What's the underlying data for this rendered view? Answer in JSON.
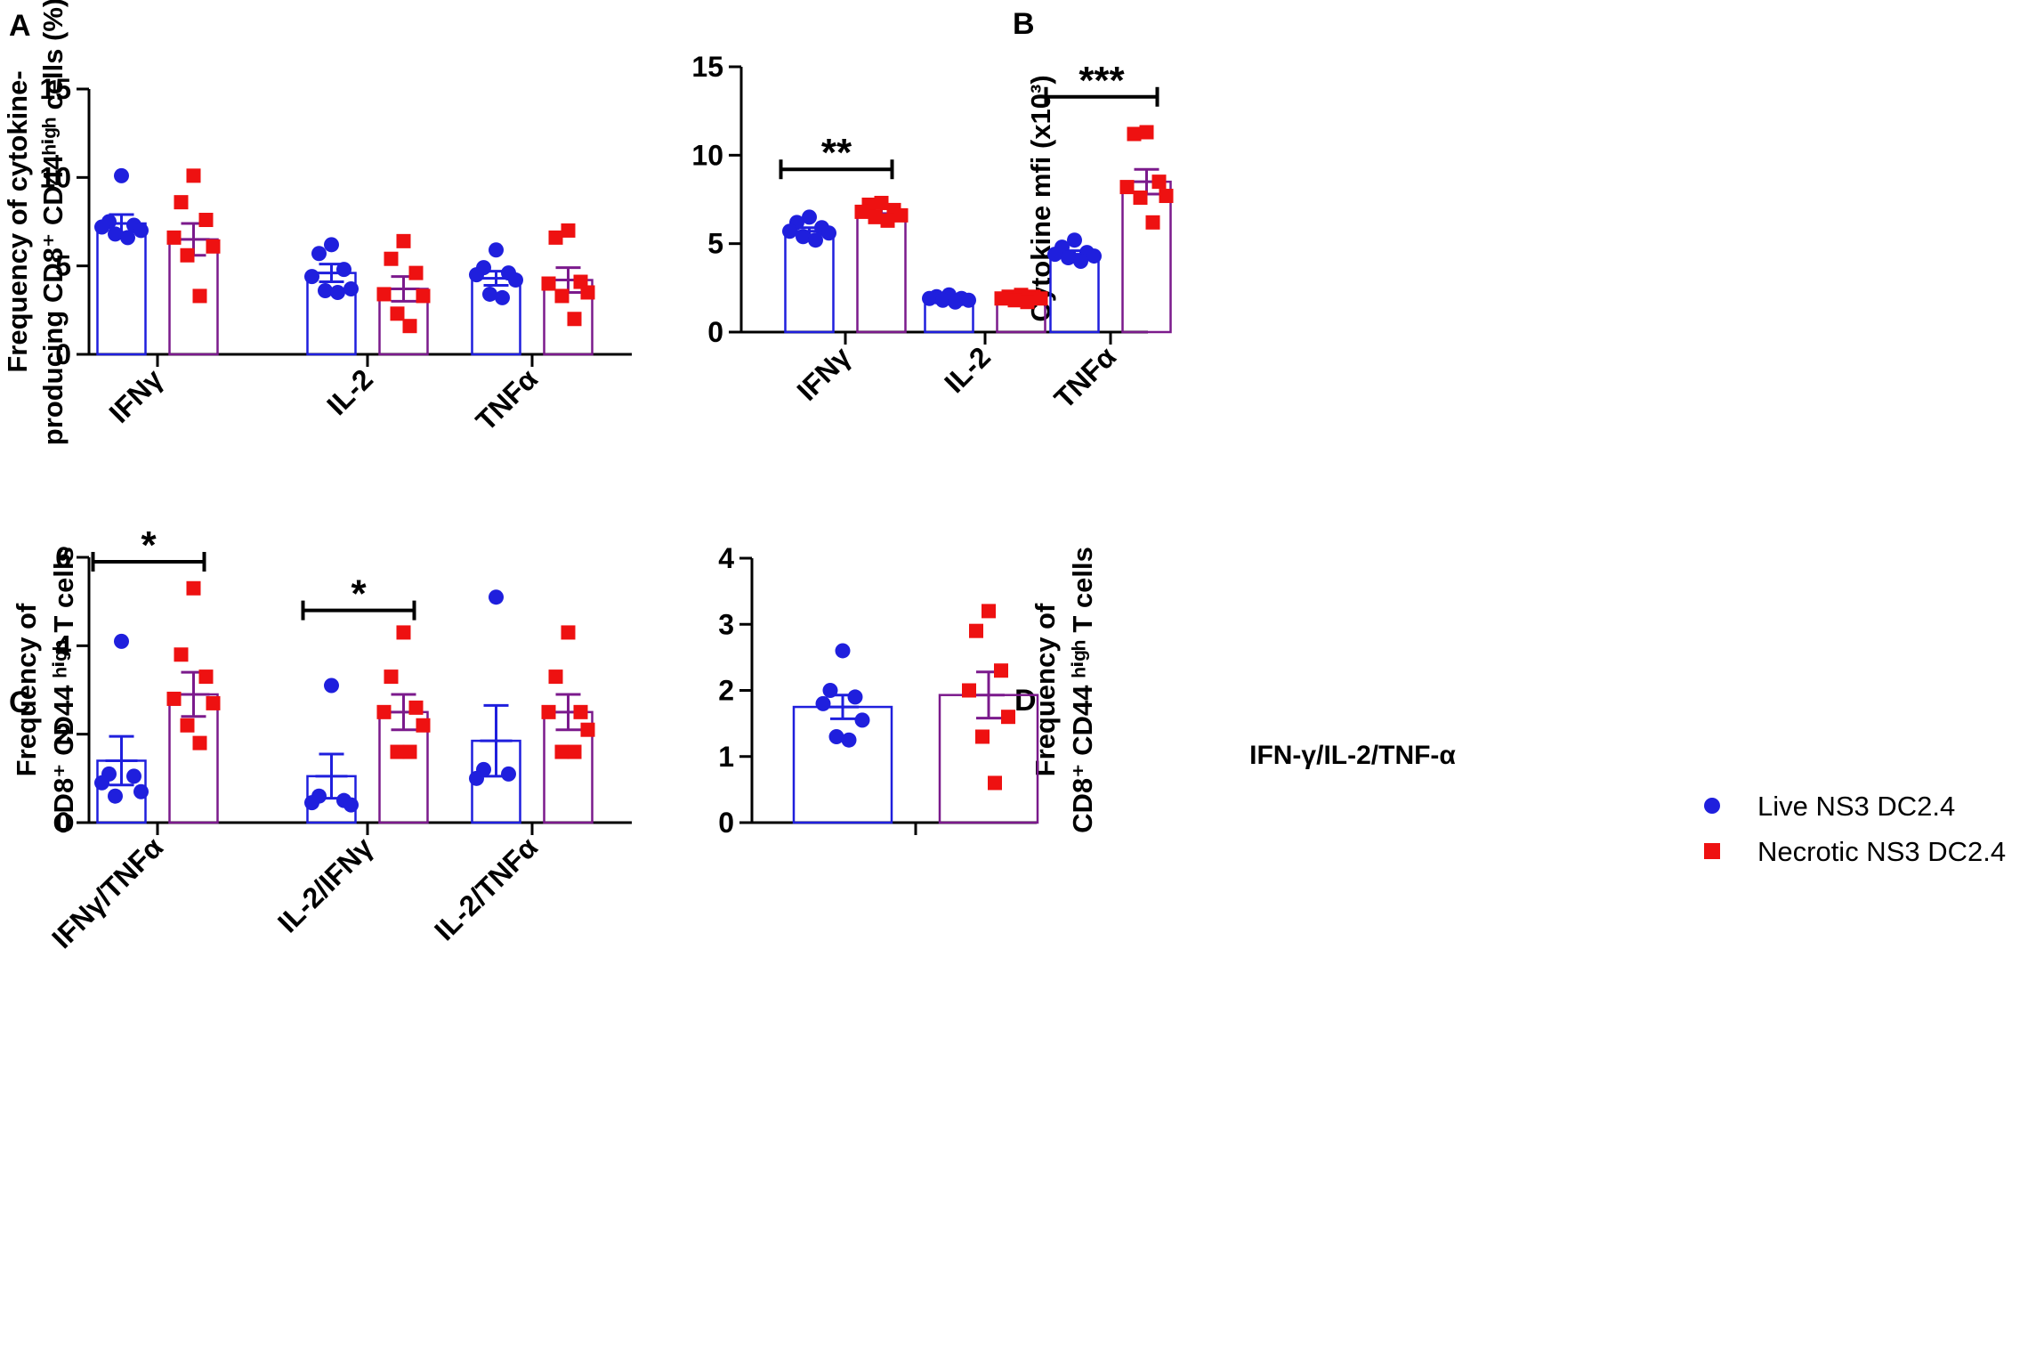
{
  "colors": {
    "live": "#1f1fdd",
    "necrotic": "#ee1111",
    "necrotic_bar": "#7b1a8c",
    "axis": "#000000"
  },
  "legend": [
    {
      "name": "Live NS3 DC2.4",
      "marker": "circle",
      "color": "#1f1fdd"
    },
    {
      "name": "Necrotic NS3 DC2.4",
      "marker": "square",
      "color": "#ee1111"
    }
  ],
  "chart_data": [
    {
      "panel": "A",
      "type": "bar",
      "ylabel_lines": [
        "Frequency of cytokine-",
        "producing CD8⁺ CD44ʰⁱᵍʰ cells (%)"
      ],
      "ylim": [
        0,
        15
      ],
      "yticks": [
        "0",
        "5",
        "10",
        "15"
      ],
      "categories": [
        "IFNγ",
        "IL-2",
        "TNFα"
      ],
      "series": [
        {
          "name": "Live NS3 DC2.4",
          "values": [
            7.4,
            4.6,
            4.3
          ],
          "sem": [
            0.5,
            0.5,
            0.4
          ],
          "points": [
            [
              10.1,
              7.5,
              7.3,
              7.2,
              7.0,
              6.8,
              6.6
            ],
            [
              6.2,
              5.7,
              4.8,
              4.4,
              3.7,
              3.6,
              3.5
            ],
            [
              5.9,
              4.9,
              4.6,
              4.5,
              4.2,
              3.4,
              3.2
            ]
          ]
        },
        {
          "name": "Necrotic NS3 DC2.4",
          "values": [
            6.5,
            3.7,
            4.2
          ],
          "sem": [
            0.9,
            0.7,
            0.7
          ],
          "points": [
            [
              10.1,
              8.6,
              7.6,
              6.6,
              6.1,
              5.6,
              3.3
            ],
            [
              6.4,
              5.4,
              4.6,
              3.4,
              3.3,
              2.3,
              1.6
            ],
            [
              7.0,
              6.6,
              4.1,
              4.0,
              3.5,
              3.3,
              2.0
            ]
          ]
        }
      ],
      "significance": []
    },
    {
      "panel": "B",
      "type": "bar",
      "ylabel_lines": [
        "Cytokine mfi (x10³)"
      ],
      "ylim": [
        0,
        15
      ],
      "yticks": [
        "0",
        "5",
        "10",
        "15"
      ],
      "categories": [
        "IFNγ",
        "IL-2",
        "TNFα"
      ],
      "series": [
        {
          "name": "Live NS3 DC2.4",
          "values": [
            5.7,
            1.9,
            4.4
          ],
          "sem": [
            0.2,
            0.1,
            0.2
          ],
          "points": [
            [
              6.5,
              6.2,
              5.9,
              5.7,
              5.6,
              5.4,
              5.2
            ],
            [
              2.1,
              2.0,
              1.9,
              1.9,
              1.8,
              1.8,
              1.7
            ],
            [
              5.2,
              4.8,
              4.5,
              4.4,
              4.3,
              4.2,
              4.0
            ]
          ]
        },
        {
          "name": "Necrotic NS3 DC2.4",
          "values": [
            6.7,
            1.9,
            8.5
          ],
          "sem": [
            0.3,
            0.1,
            0.7
          ],
          "points": [
            [
              7.3,
              7.2,
              6.9,
              6.8,
              6.6,
              6.5,
              6.3
            ],
            [
              2.1,
              2.0,
              2.0,
              1.9,
              1.9,
              1.8,
              1.7
            ],
            [
              11.3,
              11.2,
              8.5,
              8.2,
              7.7,
              7.6,
              6.2
            ]
          ]
        }
      ],
      "significance": [
        {
          "group": 0,
          "label": "**",
          "y": 9.2
        },
        {
          "group": 2,
          "label": "***",
          "y": 13.3
        }
      ]
    },
    {
      "panel": "C",
      "type": "bar",
      "ylabel_lines": [
        "Frequency of",
        "CD8⁺ CD44 ʰⁱᵍʰ T cells"
      ],
      "ylim": [
        0,
        6
      ],
      "yticks": [
        "0",
        "2",
        "4",
        "6"
      ],
      "categories": [
        "IFNγ/TNFα",
        "IL-2/IFNγ",
        "IL-2/TNFα"
      ],
      "series": [
        {
          "name": "Live NS3 DC2.4",
          "values": [
            1.4,
            1.05,
            1.85
          ],
          "sem": [
            0.55,
            0.5,
            0.8
          ],
          "points": [
            [
              4.1,
              1.1,
              1.05,
              0.9,
              0.7,
              0.6
            ],
            [
              3.1,
              0.6,
              0.5,
              0.45,
              0.4
            ],
            [
              5.1,
              1.2,
              1.1,
              1.0
            ]
          ]
        },
        {
          "name": "Necrotic NS3 DC2.4",
          "values": [
            2.9,
            2.5,
            2.5
          ],
          "sem": [
            0.5,
            0.4,
            0.4
          ],
          "points": [
            [
              5.3,
              3.8,
              3.3,
              2.8,
              2.7,
              2.2,
              1.8
            ],
            [
              4.3,
              3.3,
              2.6,
              2.5,
              2.2,
              1.6,
              1.6
            ],
            [
              4.3,
              3.3,
              2.5,
              2.5,
              2.1,
              1.6,
              1.6
            ]
          ]
        }
      ],
      "significance": [
        {
          "group": 0,
          "label": "*",
          "y": 5.9
        },
        {
          "group": 1,
          "label": "*",
          "y": 4.8
        }
      ]
    },
    {
      "panel": "D",
      "type": "bar",
      "title": "IFN-γ/IL-2/TNF-α",
      "ylabel_lines": [
        "Frequency of",
        "CD8⁺ CD44 ʰⁱᵍʰ T cells"
      ],
      "ylim": [
        0,
        4
      ],
      "yticks": [
        "0",
        "1",
        "2",
        "3",
        "4"
      ],
      "categories": [
        ""
      ],
      "series": [
        {
          "name": "Live NS3 DC2.4",
          "values": [
            1.75
          ],
          "sem": [
            0.18
          ],
          "points": [
            [
              2.6,
              2.0,
              1.9,
              1.8,
              1.55,
              1.3,
              1.25
            ]
          ]
        },
        {
          "name": "Necrotic NS3 DC2.4",
          "values": [
            1.93
          ],
          "sem": [
            0.35
          ],
          "points": [
            [
              3.2,
              2.9,
              2.3,
              2.0,
              1.6,
              1.3,
              0.6
            ]
          ]
        }
      ],
      "significance": []
    }
  ]
}
